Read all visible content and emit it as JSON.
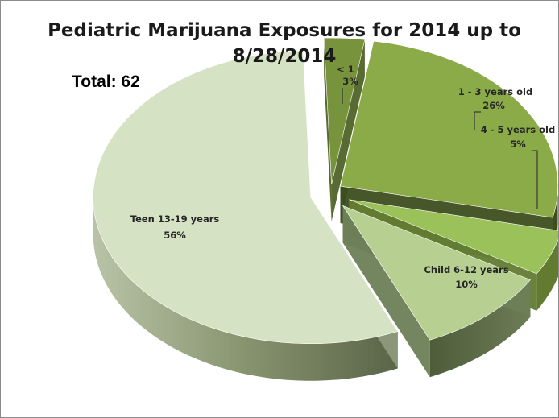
{
  "chart_data": {
    "type": "pie",
    "title_lines": [
      "Pediatric Marijuana Exposures for 2014 up to",
      "8/28/2014"
    ],
    "total_label": "Total: 62",
    "legend": "none",
    "categories": [
      "< 1",
      "1 - 3 years old",
      "4 - 5 years old",
      "Child 6-12 years",
      "Teen 13-19 years"
    ],
    "values": [
      3,
      26,
      5,
      10,
      56
    ],
    "value_labels": [
      "3%",
      "26%",
      "5%",
      "10%",
      "56%"
    ],
    "colors": [
      "#77933c",
      "#8bab49",
      "#9bc25a",
      "#b7d092",
      "#d5e3c4"
    ],
    "side_colors": [
      "#4f6328",
      "#3d4e1d",
      "#627b31",
      "#6d7f57",
      "#8e9a7c"
    ]
  }
}
